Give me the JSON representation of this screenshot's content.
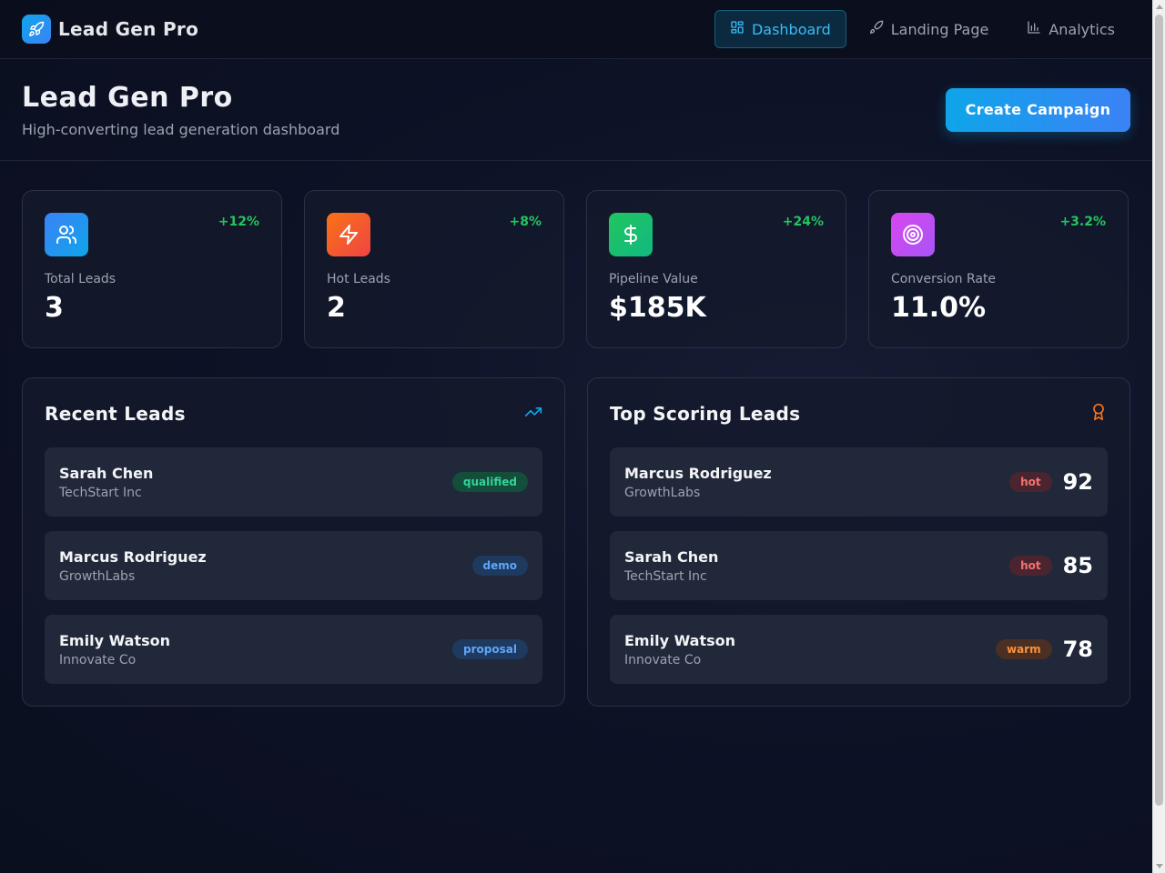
{
  "nav": {
    "brand": "Lead Gen Pro",
    "items": [
      {
        "label": "Dashboard",
        "icon": "dashboard-grid-icon",
        "active": true
      },
      {
        "label": "Landing Page",
        "icon": "rocket-icon",
        "active": false
      },
      {
        "label": "Analytics",
        "icon": "bar-chart-icon",
        "active": false
      }
    ]
  },
  "header": {
    "title": "Lead Gen Pro",
    "subtitle": "High-converting lead generation dashboard",
    "cta_label": "Create Campaign"
  },
  "stats": [
    {
      "label": "Total Leads",
      "value": "3",
      "change": "+12%",
      "icon": "users-icon",
      "color": "#3b82f6"
    },
    {
      "label": "Hot Leads",
      "value": "2",
      "change": "+8%",
      "icon": "zap-icon",
      "color": "#f97316"
    },
    {
      "label": "Pipeline Value",
      "value": "$185K",
      "change": "+24%",
      "icon": "dollar-icon",
      "color": "#22c55e"
    },
    {
      "label": "Conversion Rate",
      "value": "11.0%",
      "change": "+3.2%",
      "icon": "target-icon",
      "color": "#d946ef"
    }
  ],
  "recent": {
    "title": "Recent Leads",
    "leads": [
      {
        "name": "Sarah Chen",
        "company": "TechStart Inc",
        "status": "qualified"
      },
      {
        "name": "Marcus Rodriguez",
        "company": "GrowthLabs",
        "status": "demo"
      },
      {
        "name": "Emily Watson",
        "company": "Innovate Co",
        "status": "proposal"
      }
    ]
  },
  "top": {
    "title": "Top Scoring Leads",
    "leads": [
      {
        "name": "Marcus Rodriguez",
        "company": "GrowthLabs",
        "temp": "hot",
        "score": "92"
      },
      {
        "name": "Sarah Chen",
        "company": "TechStart Inc",
        "temp": "hot",
        "score": "85"
      },
      {
        "name": "Emily Watson",
        "company": "Innovate Co",
        "temp": "warm",
        "score": "78"
      }
    ]
  },
  "colors": {
    "accent": "#0ea5e9",
    "positive": "#22c55e",
    "hot": "#f87171",
    "warm": "#fb923c"
  }
}
